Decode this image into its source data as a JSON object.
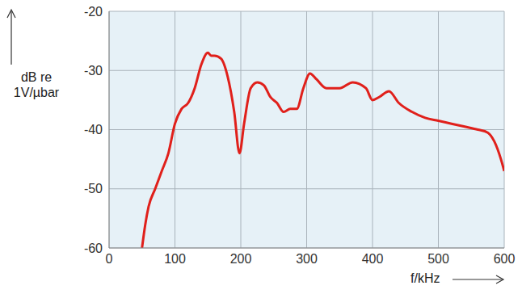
{
  "chart_data": {
    "type": "line",
    "x_label": "f/kHz",
    "y_label": "dB re 1V/µbar",
    "x": [
      50,
      55,
      60,
      70,
      80,
      90,
      100,
      110,
      120,
      130,
      140,
      150,
      155,
      160,
      170,
      180,
      190,
      198,
      205,
      215,
      225,
      235,
      245,
      255,
      265,
      275,
      285,
      295,
      305,
      315,
      330,
      350,
      370,
      390,
      400,
      410,
      425,
      440,
      460,
      480,
      500,
      520,
      540,
      560,
      575,
      585,
      595,
      600
    ],
    "values": [
      -60,
      -56,
      -53,
      -50,
      -47,
      -44,
      -39,
      -36.5,
      -35.5,
      -33,
      -29,
      -27,
      -27.5,
      -27.5,
      -28,
      -31,
      -37,
      -44,
      -39,
      -33,
      -32,
      -32.5,
      -34.5,
      -35.5,
      -37,
      -36.5,
      -36.5,
      -33,
      -30.5,
      -31.5,
      -33,
      -33,
      -32,
      -33,
      -35,
      -34.5,
      -33.5,
      -35.5,
      -37,
      -38,
      -38.5,
      -39,
      -39.5,
      -40,
      -40.5,
      -42,
      -45,
      -47
    ],
    "color": "#e0201b",
    "xlim": [
      0,
      600
    ],
    "ylim": [
      -60,
      -20
    ],
    "xticks": [
      0,
      100,
      200,
      300,
      400,
      500,
      600
    ],
    "yticks": [
      -60,
      -50,
      -40,
      -30,
      -20
    ],
    "grid": true
  }
}
